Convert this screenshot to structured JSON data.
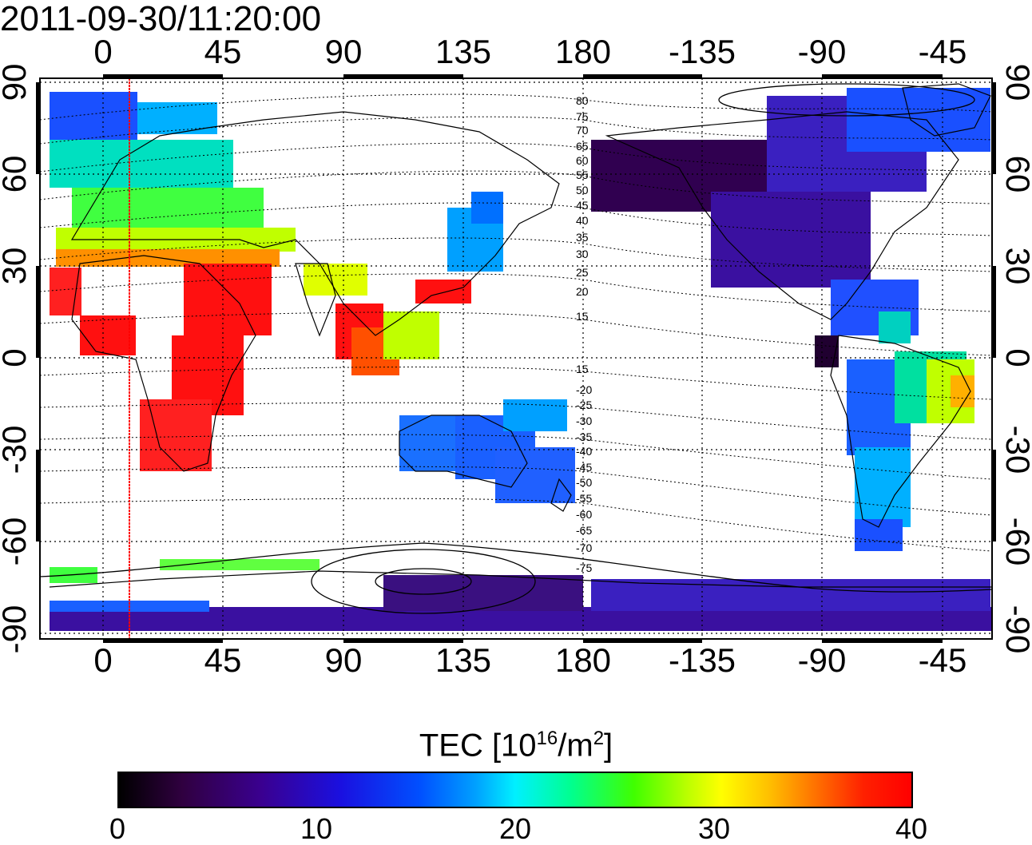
{
  "title": "2011-09-30/11:20:00",
  "top_axis_labels": [
    "0",
    "45",
    "90",
    "135",
    "180",
    "-135",
    "-90",
    "-45"
  ],
  "bottom_axis_labels": [
    "0",
    "45",
    "90",
    "135",
    "180",
    "-135",
    "-90",
    "-45"
  ],
  "left_axis_labels": [
    "90",
    "60",
    "30",
    "0",
    "-30",
    "-60",
    "-90"
  ],
  "right_axis_labels": [
    "90",
    "60",
    "30",
    "0",
    "-30",
    "-60",
    "-90"
  ],
  "contour_labels": [
    "80",
    "75",
    "70",
    "65",
    "60",
    "55",
    "50",
    "45",
    "40",
    "35",
    "30",
    "25",
    "20",
    "15",
    "15",
    "-20",
    "-25",
    "-30",
    "-35",
    "-40",
    "-45",
    "-50",
    "-55",
    "-60",
    "-65",
    "-70",
    "-75"
  ],
  "colorbar": {
    "title_main": "TEC  [10",
    "title_sup1": "16",
    "title_mid": "/m",
    "title_sup2": "2",
    "title_end": "]",
    "min": 0,
    "max": 40,
    "tick_labels": [
      "0",
      "10",
      "20",
      "30",
      "40"
    ]
  },
  "colors": {
    "marker_line": "#ff0000",
    "low": "#300040",
    "mid": "#00f0ff",
    "high": "#ff0000"
  }
}
